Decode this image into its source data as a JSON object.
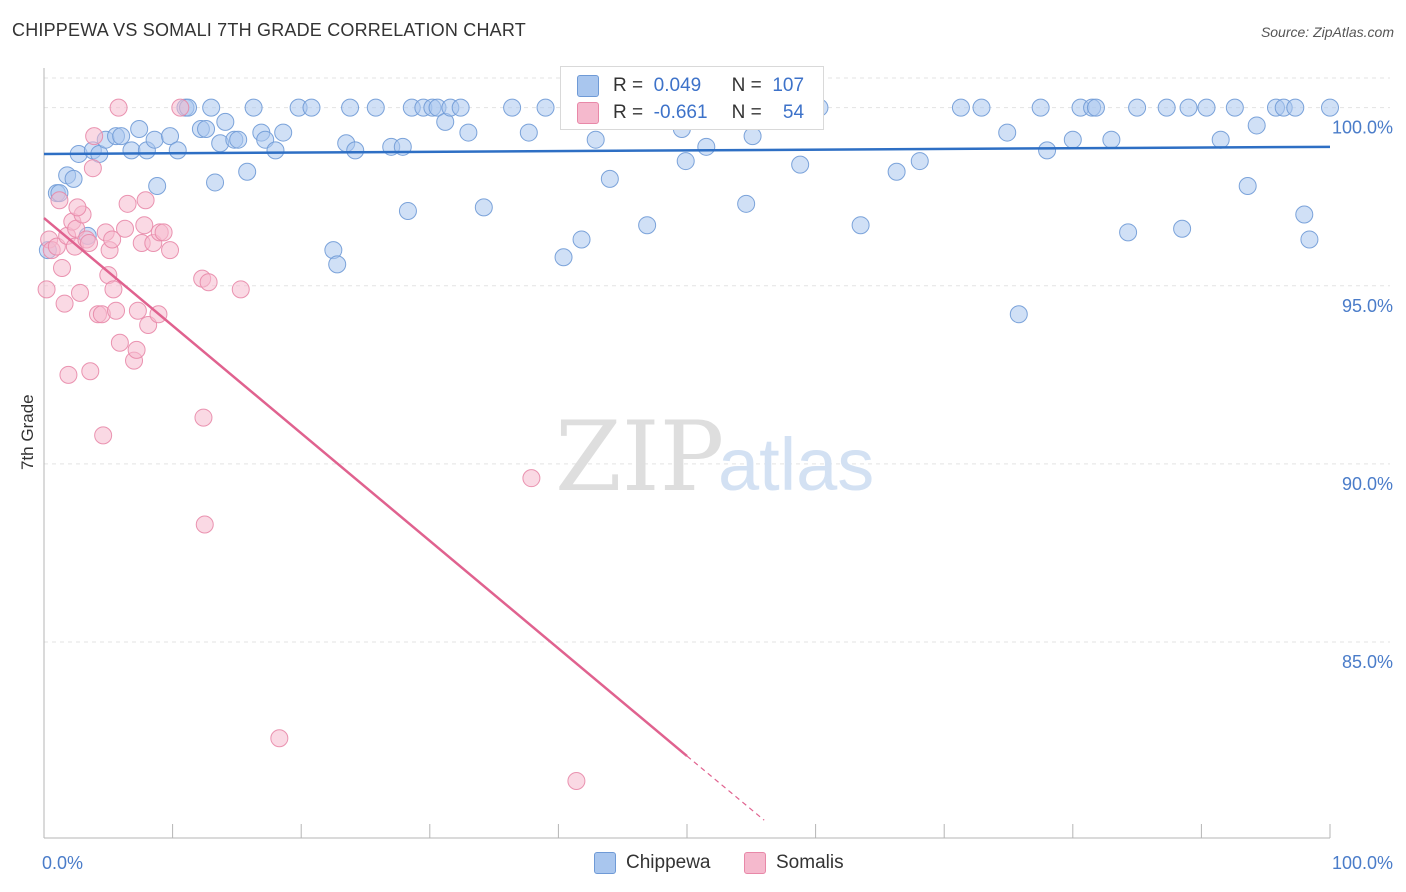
{
  "title": "CHIPPEWA VS SOMALI 7TH GRADE CORRELATION CHART",
  "source": "Source: ZipAtlas.com",
  "watermark": {
    "zip": "ZIP",
    "atlas": "atlas"
  },
  "colors": {
    "chippewa_fill": "#a9c6ee",
    "chippewa_stroke": "#6f9ad6",
    "chippewa_line": "#2e6fc4",
    "somali_fill": "#f5b9cd",
    "somali_stroke": "#e888a8",
    "somali_line": "#e0628f",
    "tick_text": "#4a7cc9",
    "grid": "#e3e3e3"
  },
  "legend": {
    "series": [
      {
        "r_label": "R =",
        "r_value": "0.049",
        "n_label": "N =",
        "n_value": "107"
      },
      {
        "r_label": "R =",
        "r_value": "-0.661",
        "n_label": "N =",
        "n_value": "54"
      }
    ]
  },
  "bottom_legend": [
    "Chippewa",
    "Somalis"
  ],
  "chart_data": {
    "type": "scatter",
    "title": "CHIPPEWA VS SOMALI 7TH GRADE CORRELATION CHART",
    "xlabel": "",
    "ylabel": "7th Grade",
    "xlim": [
      0,
      100
    ],
    "ylim": [
      79.5,
      101.0
    ],
    "x_tick_labels": [
      "0.0%",
      "100.0%"
    ],
    "y_ticks": [
      100,
      95,
      90,
      85
    ],
    "y_tick_labels": [
      "100.0%",
      "95.0%",
      "90.0%",
      "85.0%"
    ],
    "series": [
      {
        "name": "Chippewa",
        "r": 0.049,
        "n": 107,
        "trend": {
          "x": [
            0,
            100
          ],
          "y": [
            98.7,
            98.9
          ]
        },
        "points": [
          [
            0.3,
            96.0
          ],
          [
            1.0,
            97.6
          ],
          [
            1.2,
            97.6
          ],
          [
            1.8,
            98.1
          ],
          [
            2.3,
            98.0
          ],
          [
            2.7,
            98.7
          ],
          [
            3.4,
            96.4
          ],
          [
            3.8,
            98.8
          ],
          [
            4.3,
            98.7
          ],
          [
            4.8,
            99.1
          ],
          [
            5.6,
            99.2
          ],
          [
            6.0,
            99.2
          ],
          [
            6.8,
            98.8
          ],
          [
            7.4,
            99.4
          ],
          [
            8.0,
            98.8
          ],
          [
            8.6,
            99.1
          ],
          [
            8.8,
            97.8
          ],
          [
            9.8,
            99.2
          ],
          [
            10.4,
            98.8
          ],
          [
            11.0,
            100.0
          ],
          [
            11.2,
            100.0
          ],
          [
            12.2,
            99.4
          ],
          [
            12.6,
            99.4
          ],
          [
            13.0,
            100.0
          ],
          [
            13.3,
            97.9
          ],
          [
            13.7,
            99.0
          ],
          [
            14.1,
            99.6
          ],
          [
            14.8,
            99.1
          ],
          [
            15.1,
            99.1
          ],
          [
            15.8,
            98.2
          ],
          [
            16.3,
            100.0
          ],
          [
            16.9,
            99.3
          ],
          [
            17.2,
            99.1
          ],
          [
            18.0,
            98.8
          ],
          [
            18.6,
            99.3
          ],
          [
            19.8,
            100.0
          ],
          [
            20.8,
            100.0
          ],
          [
            22.5,
            96.0
          ],
          [
            22.8,
            95.6
          ],
          [
            23.5,
            99.0
          ],
          [
            23.8,
            100.0
          ],
          [
            24.2,
            98.8
          ],
          [
            25.8,
            100.0
          ],
          [
            27.0,
            98.9
          ],
          [
            27.9,
            98.9
          ],
          [
            28.3,
            97.1
          ],
          [
            28.6,
            100.0
          ],
          [
            29.5,
            100.0
          ],
          [
            30.2,
            100.0
          ],
          [
            30.6,
            100.0
          ],
          [
            31.2,
            99.6
          ],
          [
            31.6,
            100.0
          ],
          [
            32.4,
            100.0
          ],
          [
            33.0,
            99.3
          ],
          [
            34.2,
            97.2
          ],
          [
            36.4,
            100.0
          ],
          [
            37.7,
            99.3
          ],
          [
            39.0,
            100.0
          ],
          [
            40.4,
            95.8
          ],
          [
            41.0,
            100.0
          ],
          [
            41.8,
            96.3
          ],
          [
            42.9,
            99.1
          ],
          [
            44.0,
            98.0
          ],
          [
            45.5,
            100.0
          ],
          [
            46.4,
            100.0
          ],
          [
            46.9,
            96.7
          ],
          [
            49.6,
            99.4
          ],
          [
            49.9,
            98.5
          ],
          [
            51.0,
            100.0
          ],
          [
            51.5,
            98.9
          ],
          [
            52.6,
            100.0
          ],
          [
            54.6,
            97.3
          ],
          [
            55.1,
            99.2
          ],
          [
            56.5,
            100.0
          ],
          [
            58.8,
            98.4
          ],
          [
            59.5,
            100.0
          ],
          [
            60.3,
            100.0
          ],
          [
            63.5,
            96.7
          ],
          [
            66.3,
            98.2
          ],
          [
            68.1,
            98.5
          ],
          [
            71.3,
            100.0
          ],
          [
            72.9,
            100.0
          ],
          [
            74.9,
            99.3
          ],
          [
            75.8,
            94.2
          ],
          [
            77.5,
            100.0
          ],
          [
            78.0,
            98.8
          ],
          [
            80.0,
            99.1
          ],
          [
            80.6,
            100.0
          ],
          [
            81.5,
            100.0
          ],
          [
            81.8,
            100.0
          ],
          [
            83.0,
            99.1
          ],
          [
            84.3,
            96.5
          ],
          [
            85.0,
            100.0
          ],
          [
            87.3,
            100.0
          ],
          [
            88.5,
            96.6
          ],
          [
            89.0,
            100.0
          ],
          [
            90.4,
            100.0
          ],
          [
            91.5,
            99.1
          ],
          [
            92.6,
            100.0
          ],
          [
            93.6,
            97.8
          ],
          [
            94.3,
            99.5
          ],
          [
            95.8,
            100.0
          ],
          [
            96.4,
            100.0
          ],
          [
            97.3,
            100.0
          ],
          [
            98.0,
            97.0
          ],
          [
            98.4,
            96.3
          ],
          [
            100.0,
            100.0
          ]
        ]
      },
      {
        "name": "Somalis",
        "r": -0.661,
        "n": 54,
        "trend": {
          "x": [
            0,
            50
          ],
          "y": [
            96.9,
            81.8
          ]
        },
        "trend_extension": {
          "x": [
            50,
            56
          ],
          "y": [
            81.8,
            80.0
          ]
        },
        "points": [
          [
            0.2,
            94.9
          ],
          [
            0.4,
            96.3
          ],
          [
            0.6,
            96.0
          ],
          [
            1.0,
            96.1
          ],
          [
            1.2,
            97.4
          ],
          [
            1.4,
            95.5
          ],
          [
            1.6,
            94.5
          ],
          [
            1.8,
            96.4
          ],
          [
            1.9,
            92.5
          ],
          [
            2.2,
            96.8
          ],
          [
            2.4,
            96.1
          ],
          [
            2.5,
            96.6
          ],
          [
            2.8,
            94.8
          ],
          [
            3.0,
            97.0
          ],
          [
            3.3,
            96.3
          ],
          [
            3.5,
            96.2
          ],
          [
            3.6,
            92.6
          ],
          [
            3.8,
            98.3
          ],
          [
            3.9,
            99.2
          ],
          [
            4.2,
            94.2
          ],
          [
            4.5,
            94.2
          ],
          [
            4.6,
            90.8
          ],
          [
            4.8,
            96.5
          ],
          [
            5.0,
            95.3
          ],
          [
            5.1,
            96.0
          ],
          [
            5.3,
            96.3
          ],
          [
            5.4,
            94.9
          ],
          [
            5.6,
            94.3
          ],
          [
            5.8,
            100.0
          ],
          [
            5.9,
            93.4
          ],
          [
            6.3,
            96.6
          ],
          [
            6.5,
            97.3
          ],
          [
            7.0,
            92.9
          ],
          [
            7.2,
            93.2
          ],
          [
            7.3,
            94.3
          ],
          [
            7.6,
            96.2
          ],
          [
            7.8,
            96.7
          ],
          [
            7.9,
            97.4
          ],
          [
            8.1,
            93.9
          ],
          [
            8.5,
            96.2
          ],
          [
            8.9,
            94.2
          ],
          [
            9.0,
            96.5
          ],
          [
            9.3,
            96.5
          ],
          [
            9.8,
            96.0
          ],
          [
            10.6,
            100.0
          ],
          [
            12.3,
            95.2
          ],
          [
            12.4,
            91.3
          ],
          [
            12.5,
            88.3
          ],
          [
            12.8,
            95.1
          ],
          [
            15.3,
            94.9
          ],
          [
            18.3,
            82.3
          ],
          [
            37.9,
            89.6
          ],
          [
            41.4,
            81.1
          ],
          [
            2.6,
            97.2
          ]
        ]
      }
    ]
  }
}
